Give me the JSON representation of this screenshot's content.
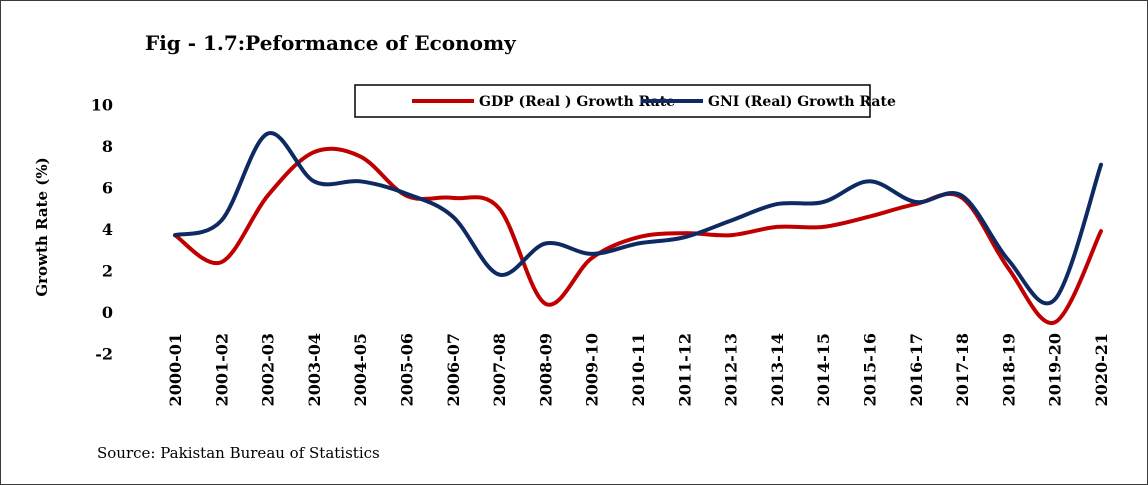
{
  "chart_data": {
    "type": "line",
    "title": "Fig - 1.7:Peformance of Economy",
    "ylabel": "Growth Rate (%)",
    "xlabel": "",
    "ylim": [
      -2,
      10
    ],
    "yticks": [
      -2,
      0,
      2,
      4,
      6,
      8,
      10
    ],
    "legend_position": "top",
    "grid": false,
    "categories": [
      "2000-01",
      "2001-02",
      "2002-03",
      "2003-04",
      "2004-05",
      "2005-06",
      "2006-07",
      "2007-08",
      "2008-09",
      "2009-10",
      "2010-11",
      "2011-12",
      "2012-13",
      "2013-14",
      "2014-15",
      "2015-16",
      "2016-17",
      "2017-18",
      "2018-19",
      "2019-20",
      "2020-21"
    ],
    "series": [
      {
        "name": "GDP (Real ) Growth Rate",
        "color": "#c00000",
        "values": [
          3.7,
          2.4,
          5.6,
          7.7,
          7.5,
          5.6,
          5.5,
          5.0,
          0.4,
          2.6,
          3.6,
          3.8,
          3.7,
          4.1,
          4.1,
          4.6,
          5.2,
          5.5,
          2.1,
          -0.5,
          3.9
        ]
      },
      {
        "name": "GNI (Real) Growth Rate",
        "color": "#0e2a63",
        "values": [
          3.7,
          4.4,
          8.6,
          6.3,
          6.3,
          5.7,
          4.6,
          1.8,
          3.3,
          2.8,
          3.3,
          3.6,
          4.4,
          5.2,
          5.3,
          6.3,
          5.3,
          5.6,
          2.5,
          0.6,
          7.1
        ]
      }
    ],
    "source": "Source: Pakistan Bureau of Statistics"
  }
}
